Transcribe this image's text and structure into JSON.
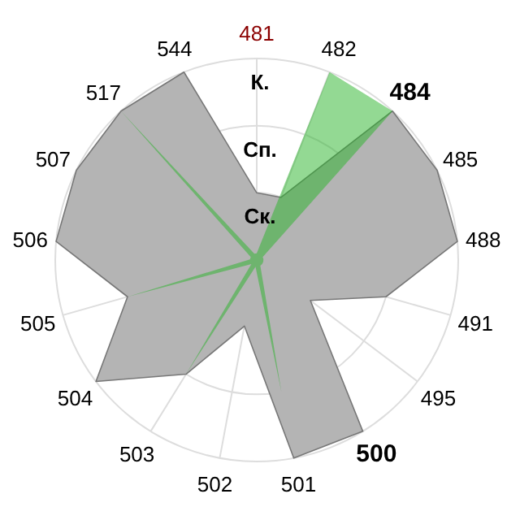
{
  "chart_data": {
    "type": "radar",
    "categories": [
      "481",
      "482",
      "484",
      "485",
      "488",
      "491",
      "495",
      "500",
      "501",
      "502",
      "503",
      "504",
      "505",
      "506",
      "507",
      "517",
      "544"
    ],
    "series": [
      {
        "color": "#b4b4b4",
        "values": [
          1,
          1,
          3,
          3,
          3,
          2,
          1,
          3,
          3,
          1,
          2,
          3,
          2,
          3,
          3,
          3,
          3
        ]
      },
      {
        "color": "#28b428",
        "values": [
          0.1,
          3,
          3,
          0.1,
          0.1,
          0.1,
          0.1,
          0.1,
          2,
          0.1,
          2,
          0.1,
          2,
          0.1,
          0.1,
          3,
          0.1
        ]
      }
    ],
    "ylim": [
      0,
      3
    ],
    "yticks": [
      {
        "value": 1,
        "label": "Ск."
      },
      {
        "value": 2,
        "label": "Сп."
      },
      {
        "value": 3,
        "label": "К."
      }
    ],
    "grid": true
  }
}
